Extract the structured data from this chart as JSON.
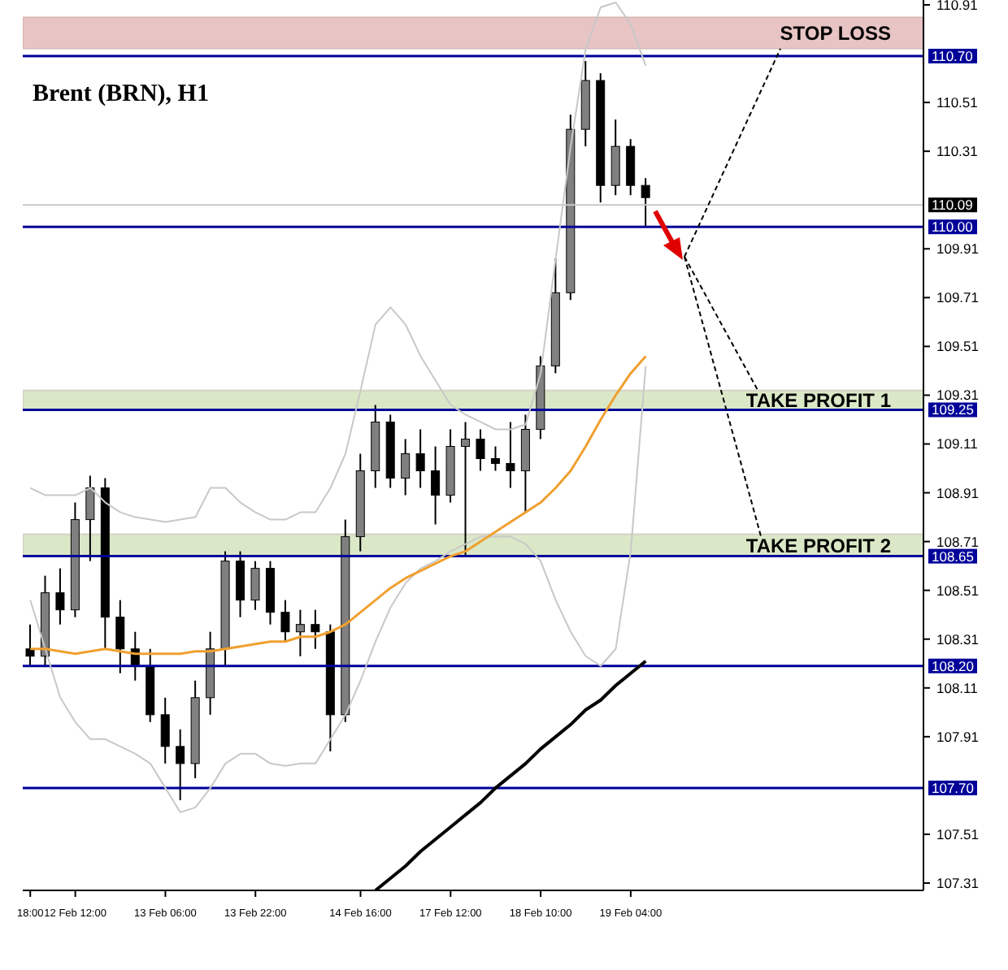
{
  "chart_data": {
    "type": "candlestick",
    "title": "Brent (BRN), H1",
    "categories": [
      "18:00",
      null,
      null,
      "12 Feb 12:00",
      null,
      null,
      null,
      null,
      null,
      "13 Feb 06:00",
      null,
      null,
      null,
      null,
      null,
      "13 Feb 22:00",
      null,
      null,
      null,
      null,
      null,
      null,
      "14 Feb 16:00",
      null,
      null,
      null,
      null,
      null,
      "17 Feb 12:00",
      null,
      null,
      null,
      null,
      null,
      "18 Feb 10:00",
      null,
      null,
      null,
      null,
      null,
      "19 Feb 04:00",
      null,
      null,
      null,
      null,
      null,
      null,
      null,
      null,
      null,
      null,
      null,
      null,
      null,
      null,
      null,
      null,
      null,
      null,
      null
    ],
    "ohlc": [
      [
        108.27,
        108.37,
        108.2,
        108.24
      ],
      [
        108.24,
        108.57,
        108.2,
        108.5
      ],
      [
        108.5,
        108.6,
        108.37,
        108.43
      ],
      [
        108.43,
        108.87,
        108.4,
        108.8
      ],
      [
        108.8,
        108.98,
        108.63,
        108.93
      ],
      [
        108.93,
        108.97,
        108.27,
        108.4
      ],
      [
        108.4,
        108.47,
        108.17,
        108.27
      ],
      [
        108.27,
        108.34,
        108.14,
        108.2
      ],
      [
        108.2,
        108.27,
        107.97,
        108.0
      ],
      [
        108.0,
        108.07,
        107.8,
        107.87
      ],
      [
        107.87,
        107.94,
        107.65,
        107.8
      ],
      [
        107.8,
        108.14,
        107.74,
        108.07
      ],
      [
        108.07,
        108.34,
        108.0,
        108.27
      ],
      [
        108.27,
        108.67,
        108.2,
        108.63
      ],
      [
        108.63,
        108.67,
        108.4,
        108.47
      ],
      [
        108.47,
        108.63,
        108.43,
        108.6
      ],
      [
        108.6,
        108.63,
        108.37,
        108.42
      ],
      [
        108.42,
        108.47,
        108.3,
        108.34
      ],
      [
        108.34,
        108.43,
        108.24,
        108.37
      ],
      [
        108.37,
        108.43,
        108.27,
        108.34
      ],
      [
        108.34,
        108.37,
        107.85,
        108.0
      ],
      [
        108.0,
        108.8,
        107.97,
        108.73
      ],
      [
        108.73,
        109.07,
        108.67,
        109.0
      ],
      [
        109.0,
        109.27,
        108.93,
        109.2
      ],
      [
        109.2,
        109.23,
        108.93,
        108.97
      ],
      [
        108.97,
        109.13,
        108.9,
        109.07
      ],
      [
        109.07,
        109.17,
        108.93,
        109.0
      ],
      [
        109.0,
        109.1,
        108.78,
        108.9
      ],
      [
        108.9,
        109.17,
        108.87,
        109.1
      ],
      [
        109.1,
        109.2,
        108.65,
        109.13
      ],
      [
        109.13,
        109.17,
        109.0,
        109.05
      ],
      [
        109.05,
        109.1,
        109.0,
        109.03
      ],
      [
        109.03,
        109.2,
        108.93,
        109.0
      ],
      [
        109.0,
        109.23,
        108.83,
        109.17
      ],
      [
        109.17,
        109.47,
        109.13,
        109.43
      ],
      [
        109.43,
        109.87,
        109.4,
        109.73
      ],
      [
        109.73,
        110.46,
        109.7,
        110.4
      ],
      [
        110.4,
        110.68,
        110.33,
        110.6
      ],
      [
        110.6,
        110.63,
        110.1,
        110.17
      ],
      [
        110.17,
        110.44,
        110.13,
        110.33
      ],
      [
        110.33,
        110.36,
        110.13,
        110.17
      ],
      [
        110.17,
        110.2,
        110.0,
        110.12
      ],
      null,
      null,
      null,
      null,
      null,
      null,
      null,
      null,
      null,
      null,
      null,
      null,
      null,
      null,
      null,
      null,
      null,
      null
    ],
    "colors": [
      "#000000",
      "#808080",
      "#000000",
      "#808080",
      "#808080",
      "#000000",
      "#000000",
      "#000000",
      "#000000",
      "#000000",
      "#000000",
      "#808080",
      "#808080",
      "#808080",
      "#000000",
      "#808080",
      "#000000",
      "#000000",
      "#808080",
      "#000000",
      "#000000",
      "#808080",
      "#808080",
      "#808080",
      "#000000",
      "#808080",
      "#000000",
      "#000000",
      "#808080",
      "#808080",
      "#000000",
      "#000000",
      "#000000",
      "#808080",
      "#808080",
      "#808080",
      "#808080",
      "#808080",
      "#000000",
      "#808080",
      "#000000",
      "#000000",
      null,
      null,
      null,
      null,
      null,
      null,
      null,
      null,
      null,
      null,
      null,
      null,
      null,
      null,
      null,
      null,
      null,
      null
    ],
    "series": [
      {
        "type": "line",
        "color": "#c8c8c8",
        "values": [
          108.93,
          108.9,
          108.9,
          108.9,
          108.93,
          108.87,
          108.83,
          108.81,
          108.8,
          108.79,
          108.8,
          108.81,
          108.93,
          108.93,
          108.87,
          108.83,
          108.8,
          108.8,
          108.83,
          108.83,
          108.93,
          109.07,
          109.33,
          109.6,
          109.67,
          109.6,
          109.47,
          109.37,
          109.27,
          109.23,
          109.2,
          109.17,
          109.17,
          109.19,
          109.4,
          109.87,
          110.33,
          110.73,
          110.9,
          110.92,
          110.83,
          110.66,
          null,
          null,
          null,
          null,
          null,
          null,
          null,
          null,
          null,
          null,
          null,
          null,
          null,
          null,
          null,
          null,
          null,
          null
        ]
      },
      {
        "type": "line",
        "color": "#c8c8c8",
        "values": [
          108.47,
          108.27,
          108.07,
          107.97,
          107.9,
          107.9,
          107.87,
          107.84,
          107.8,
          107.7,
          107.6,
          107.62,
          107.7,
          107.8,
          107.84,
          107.84,
          107.8,
          107.79,
          107.8,
          107.8,
          107.9,
          108.0,
          108.14,
          108.3,
          108.44,
          108.54,
          108.6,
          108.63,
          108.67,
          108.7,
          108.73,
          108.73,
          108.73,
          108.7,
          108.63,
          108.47,
          108.34,
          108.24,
          108.2,
          108.27,
          108.67,
          109.43,
          null,
          null,
          null,
          null,
          null,
          null,
          null,
          null,
          null,
          null,
          null,
          null,
          null,
          null,
          null,
          null,
          null,
          null
        ]
      },
      {
        "type": "line",
        "color": "#f0a030",
        "values": [
          108.27,
          108.27,
          108.26,
          108.25,
          108.26,
          108.27,
          108.26,
          108.25,
          108.25,
          108.25,
          108.25,
          108.26,
          108.26,
          108.27,
          108.28,
          108.29,
          108.3,
          108.3,
          108.32,
          108.32,
          108.34,
          108.37,
          108.42,
          108.47,
          108.52,
          108.56,
          108.59,
          108.62,
          108.65,
          108.67,
          108.71,
          108.75,
          108.79,
          108.83,
          108.87,
          108.93,
          109.0,
          109.1,
          109.21,
          109.31,
          109.4,
          109.47,
          null,
          null,
          null,
          null,
          null,
          null,
          null,
          null,
          null,
          null,
          null,
          null,
          null,
          null,
          null,
          null,
          null,
          null
        ]
      },
      {
        "type": "line",
        "color": "#000000",
        "values": [
          null,
          null,
          null,
          null,
          null,
          null,
          null,
          null,
          null,
          null,
          null,
          null,
          null,
          null,
          null,
          null,
          null,
          null,
          null,
          null,
          null,
          null,
          null,
          107.28,
          107.33,
          107.38,
          107.44,
          107.49,
          107.54,
          107.59,
          107.64,
          107.7,
          107.75,
          107.8,
          107.86,
          107.91,
          107.96,
          108.02,
          108.06,
          108.12,
          108.17,
          108.22,
          null,
          null,
          null,
          null,
          null,
          null,
          null,
          null,
          null,
          null,
          null,
          null,
          null,
          null,
          null,
          null,
          null,
          null
        ]
      }
    ],
    "ylim": [
      107.28,
      110.93
    ],
    "yticks": [
      110.91,
      110.51,
      110.31,
      109.91,
      109.71,
      109.51,
      109.31,
      109.11,
      108.91,
      108.71,
      108.51,
      108.31,
      108.11,
      107.91,
      107.51,
      107.31
    ],
    "ref_lines": [
      {
        "axis": "y",
        "value": 110.7,
        "label": "110.70",
        "color": "#000099"
      },
      {
        "axis": "y",
        "value": 110.09,
        "label": "110.09",
        "color": "#c8c8c8"
      },
      {
        "axis": "y",
        "value": 110.0,
        "label": "110.00",
        "color": "#000099"
      },
      {
        "axis": "y",
        "value": 109.25,
        "label": "109.25",
        "color": "#000099"
      },
      {
        "axis": "y",
        "value": 108.65,
        "label": "108.65",
        "color": "#000099"
      },
      {
        "axis": "y",
        "value": 108.2,
        "label": "108.20",
        "color": "#000099"
      },
      {
        "axis": "y",
        "value": 107.7,
        "label": "107.70",
        "color": "#000099"
      }
    ],
    "bands": [
      {
        "axis": "y",
        "from": 110.73,
        "to": 110.86,
        "label": "STOP LOSS",
        "color": "#e8c4c4"
      },
      {
        "axis": "y",
        "from": 109.25,
        "to": 109.33,
        "label": "TAKE PROFIT 1",
        "color": "#dbe8c8"
      },
      {
        "axis": "y",
        "from": 108.65,
        "to": 108.74,
        "label": "TAKE PROFIT 2",
        "color": "#dbe8c8"
      }
    ],
    "grid": false,
    "legend": false
  }
}
